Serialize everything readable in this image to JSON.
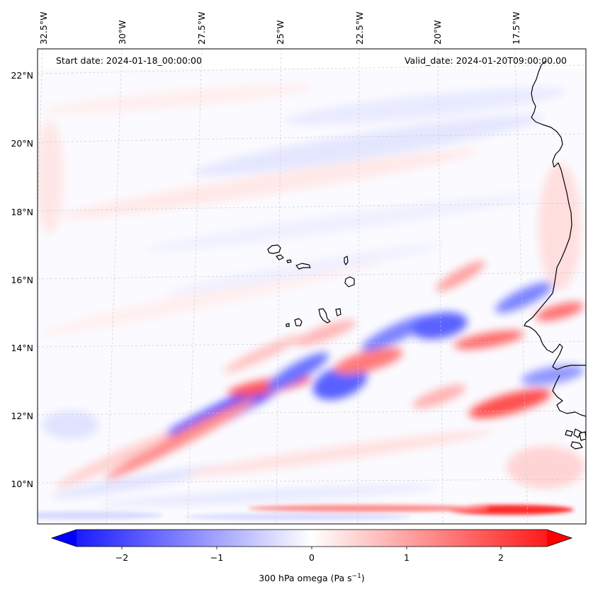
{
  "map": {
    "start_label": "Start date: 2024-01-18_00:00:00",
    "valid_label": "Valid_date: 2024-01-20T09:00:00.00",
    "lon_labels": [
      "32.5°W",
      "30°W",
      "27.5°W",
      "25°W",
      "22.5°W",
      "20°W",
      "17.5°W"
    ],
    "lat_labels": [
      "22°N",
      "20°N",
      "18°N",
      "16°N",
      "14°N",
      "12°N",
      "10°N"
    ],
    "field": "300 hPa omega",
    "cmap": "bwr",
    "colors": {
      "negative": "#0000ff",
      "zero": "#ffffff",
      "positive": "#ff0000",
      "coast": "#000000",
      "grid": "#c8c8c8"
    }
  },
  "colorbar": {
    "label_main": "300 hPa omega (Pa s",
    "label_exp": "−1",
    "label_close": ")",
    "ticks": [
      "−2",
      "−1",
      "0",
      "1",
      "2"
    ],
    "vmin": -2.75,
    "vmax": 2.75,
    "extend": "both"
  }
}
